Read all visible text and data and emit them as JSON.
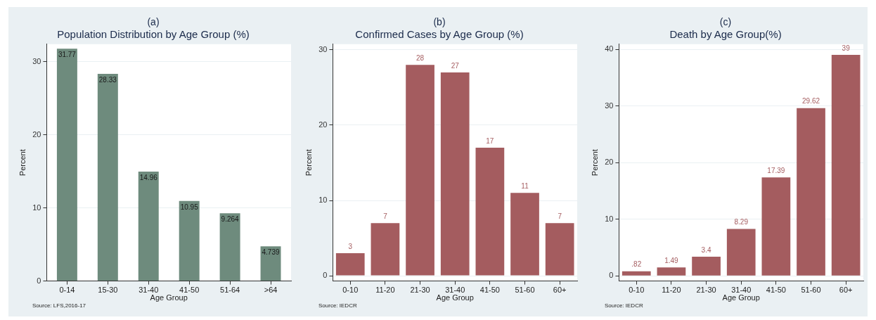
{
  "chart_data": [
    {
      "type": "bar",
      "title": "(a)",
      "subtitle": "Population Distribution by Age Group (%)",
      "xlabel": "Age Group",
      "ylabel": "Percent",
      "categories": [
        "0-14",
        "15-30",
        "31-40",
        "41-50",
        "51-64",
        ">64"
      ],
      "values": [
        31.77,
        28.33,
        14.96,
        10.95,
        9.264,
        4.739
      ],
      "value_labels": [
        "31.77",
        "28.33",
        "14.96",
        "10.95",
        "9.264",
        "4.739"
      ],
      "color": "#6e8b7d",
      "ylim": [
        0,
        32.4
      ],
      "yticks": [
        0,
        10,
        20,
        30
      ],
      "grid": "y",
      "legend": false,
      "annotations": [
        "Source: LFS,2016-17"
      ]
    },
    {
      "type": "bar",
      "title": "(b)",
      "subtitle": "Confirmed Cases by Age Group (%)",
      "xlabel": "Age Group",
      "ylabel": "Percent",
      "categories": [
        "0-10",
        "11-20",
        "21-30",
        "31-40",
        "41-50",
        "51-60",
        "60+"
      ],
      "values": [
        3,
        7,
        28,
        27,
        17,
        11,
        7
      ],
      "value_labels": [
        "3",
        "7",
        "28",
        "27",
        "17",
        "11",
        "7"
      ],
      "color": "#a45c5f",
      "ylim": [
        -0.7,
        30.75
      ],
      "yticks": [
        0,
        10,
        20,
        30
      ],
      "grid": "y",
      "legend": false,
      "annotations": [
        "Source: IEDCR"
      ]
    },
    {
      "type": "bar",
      "title": "(c)",
      "subtitle": "Death by Age Group(%)",
      "xlabel": "Age Group",
      "ylabel": "Percent",
      "categories": [
        "0-10",
        "11-20",
        "21-30",
        "31-40",
        "41-50",
        "51-60",
        "60+"
      ],
      "values": [
        0.82,
        1.49,
        3.4,
        8.29,
        17.39,
        29.62,
        39
      ],
      "value_labels": [
        ".82",
        "1.49",
        "3.4",
        "8.29",
        "17.39",
        "29.62",
        "39"
      ],
      "color": "#a45c5f",
      "ylim": [
        -0.9,
        40.9
      ],
      "yticks": [
        0,
        10,
        20,
        30,
        40
      ],
      "grid": "y",
      "legend": false,
      "annotations": [
        "Source: IEDCR"
      ]
    }
  ]
}
